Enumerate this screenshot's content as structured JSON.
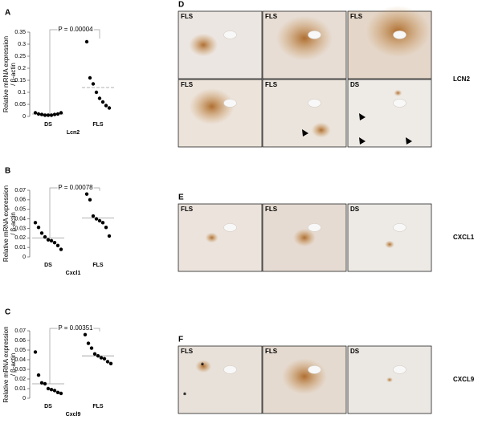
{
  "chart_data": [
    {
      "type": "strip",
      "panel": "A",
      "ylabel": [
        "Relative mRNA expression",
        "/  β-actin"
      ],
      "xlabel": "Lcn2",
      "annotation": "P = 0.00004",
      "categories": [
        "DS",
        "FLS"
      ],
      "color": "#000000",
      "values": [
        [
          0.015,
          0.01,
          0.008,
          0.005,
          0.005,
          0.005,
          0.008,
          0.01,
          0.015
        ],
        [
          0.31,
          0.16,
          0.135,
          0.1,
          0.075,
          0.06,
          0.045,
          0.035
        ]
      ],
      "means": [
        0.01,
        0.12
      ],
      "ylim": [
        0,
        0.35
      ],
      "yticks": [
        0,
        0.05,
        0.1,
        0.15,
        0.2,
        0.25,
        0.3,
        0.35
      ]
    },
    {
      "type": "strip",
      "panel": "B",
      "ylabel": [
        "Relative mRNA expression",
        "/  β-actin"
      ],
      "xlabel": "Cxcl1",
      "annotation": "P = 0.00078",
      "categories": [
        "DS",
        "FLS"
      ],
      "color": "#000000",
      "values": [
        [
          0.036,
          0.031,
          0.025,
          0.021,
          0.018,
          0.017,
          0.015,
          0.012,
          0.008
        ],
        [
          0.066,
          0.06,
          0.043,
          0.04,
          0.038,
          0.036,
          0.031,
          0.022
        ]
      ],
      "means": [
        0.02,
        0.041
      ],
      "ylim": [
        0,
        0.07
      ],
      "yticks": [
        0,
        0.01,
        0.02,
        0.03,
        0.04,
        0.05,
        0.06,
        0.07
      ]
    },
    {
      "type": "strip",
      "panel": "C",
      "ylabel": [
        "Relative mRNA expression",
        "/  β-actin"
      ],
      "xlabel": "Cxcl9",
      "annotation": "P = 0.00351",
      "categories": [
        "DS",
        "FLS"
      ],
      "color": "#000000",
      "values": [
        [
          0.048,
          0.024,
          0.016,
          0.015,
          0.01,
          0.009,
          0.008,
          0.006,
          0.005
        ],
        [
          0.066,
          0.057,
          0.052,
          0.046,
          0.044,
          0.042,
          0.041,
          0.038,
          0.036
        ]
      ],
      "means": [
        0.015,
        0.044
      ],
      "ylim": [
        0,
        0.07
      ],
      "yticks": [
        0,
        0.01,
        0.02,
        0.03,
        0.04,
        0.05,
        0.06,
        0.07
      ]
    }
  ],
  "micrographs": [
    {
      "panel": "D",
      "marker": "LCN2",
      "tiles": [
        "FLS",
        "FLS",
        "FLS",
        "FLS",
        "FLS",
        "DS"
      ]
    },
    {
      "panel": "E",
      "marker": "CXCL1",
      "tiles": [
        "FLS",
        "FLS",
        "DS"
      ]
    },
    {
      "panel": "F",
      "marker": "CXCL9",
      "tiles": [
        "FLS",
        "FLS",
        "DS"
      ],
      "annotations": [
        "*",
        "*"
      ]
    }
  ]
}
